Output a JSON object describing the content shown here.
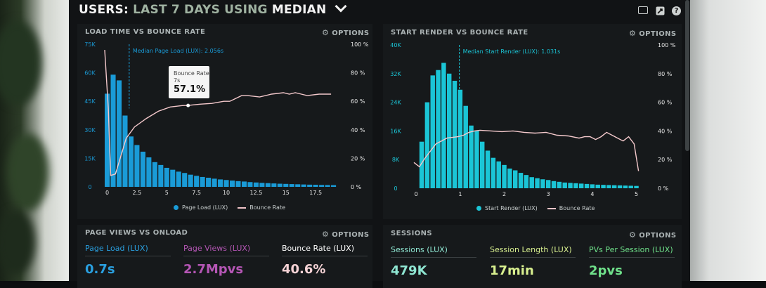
{
  "header": {
    "title_prefix": "USERS:",
    "title_range": "LAST 7 DAYS",
    "title_using": "USING",
    "title_method": "MEDIAN"
  },
  "icons": [
    "monitor-icon",
    "share-icon",
    "help-icon"
  ],
  "help_glyph": "?",
  "options_label": "OPTIONS",
  "colors": {
    "load_bar": "#1a9bd7",
    "render_bar": "#1bc5d6",
    "bounce_line": "#f4c9cc",
    "page_load_text": "#2aa0e0",
    "page_views_text": "#b556b5",
    "bounce_text": "#f6d3d6",
    "sessions_text": "#8fe6d2",
    "session_length_text": "#d8ef8f",
    "pvs_text": "#6fe08a"
  },
  "load_chart": {
    "title": "LOAD TIME VS BOUNCE RATE",
    "median_label": "Median Page Load (LUX): 2.056s",
    "tooltip": {
      "label": "Bounce Rate",
      "x": "7s",
      "value": "57.1%"
    },
    "legend": [
      "Page Load (LUX)",
      "Bounce Rate"
    ],
    "chart_data": {
      "type": "bar",
      "x_ticks": [
        "0",
        "2.5",
        "5",
        "7.5",
        "10",
        "12.5",
        "15",
        "17.5"
      ],
      "y_ticks_left": [
        "75K",
        "60K",
        "45K",
        "30K",
        "15K",
        "0"
      ],
      "y_ticks_right": [
        "100 %",
        "80 %",
        "60 %",
        "40 %",
        "20 %",
        "0 %"
      ],
      "ylim": [
        0,
        75000
      ],
      "xlim": [
        0,
        20
      ],
      "median_x": 2.056,
      "bar_width": 0.5,
      "bars": [
        {
          "x": 0,
          "y": 49000
        },
        {
          "x": 0.5,
          "y": 59000
        },
        {
          "x": 1,
          "y": 56000
        },
        {
          "x": 1.5,
          "y": 37500
        },
        {
          "x": 2,
          "y": 26500
        },
        {
          "x": 2.5,
          "y": 22000
        },
        {
          "x": 3,
          "y": 18500
        },
        {
          "x": 3.5,
          "y": 15500
        },
        {
          "x": 4,
          "y": 13000
        },
        {
          "x": 4.5,
          "y": 11500
        },
        {
          "x": 5,
          "y": 10000
        },
        {
          "x": 5.5,
          "y": 9000
        },
        {
          "x": 6,
          "y": 8000
        },
        {
          "x": 6.5,
          "y": 7300
        },
        {
          "x": 7,
          "y": 6400
        },
        {
          "x": 7.5,
          "y": 5800
        },
        {
          "x": 8,
          "y": 5200
        },
        {
          "x": 8.5,
          "y": 4800
        },
        {
          "x": 9,
          "y": 4300
        },
        {
          "x": 9.5,
          "y": 3900
        },
        {
          "x": 10,
          "y": 3600
        },
        {
          "x": 10.5,
          "y": 3300
        },
        {
          "x": 11,
          "y": 3000
        },
        {
          "x": 11.5,
          "y": 2800
        },
        {
          "x": 12,
          "y": 2500
        },
        {
          "x": 12.5,
          "y": 2300
        },
        {
          "x": 13,
          "y": 2100
        },
        {
          "x": 13.5,
          "y": 1950
        },
        {
          "x": 14,
          "y": 1800
        },
        {
          "x": 14.5,
          "y": 1650
        },
        {
          "x": 15,
          "y": 1550
        },
        {
          "x": 15.5,
          "y": 1450
        },
        {
          "x": 16,
          "y": 1350
        },
        {
          "x": 16.5,
          "y": 1250
        },
        {
          "x": 17,
          "y": 1150
        },
        {
          "x": 17.5,
          "y": 1100
        },
        {
          "x": 18,
          "y": 1000
        },
        {
          "x": 18.5,
          "y": 950
        },
        {
          "x": 19,
          "y": 900
        }
      ],
      "bounce_line": [
        [
          0,
          96
        ],
        [
          0.3,
          55
        ],
        [
          0.5,
          8
        ],
        [
          0.9,
          9
        ],
        [
          1.3,
          20
        ],
        [
          1.8,
          34
        ],
        [
          2.5,
          42
        ],
        [
          3.5,
          48
        ],
        [
          4.5,
          53
        ],
        [
          5.5,
          56
        ],
        [
          6.5,
          57
        ],
        [
          7,
          57.1
        ],
        [
          8,
          58
        ],
        [
          9,
          58.5
        ],
        [
          10,
          60
        ],
        [
          10.5,
          60
        ],
        [
          11,
          62
        ],
        [
          11.5,
          64
        ],
        [
          12,
          64
        ],
        [
          13,
          63
        ],
        [
          14,
          65
        ],
        [
          15,
          66
        ],
        [
          15.5,
          65
        ],
        [
          16,
          66
        ],
        [
          16.5,
          65
        ],
        [
          17,
          64
        ],
        [
          18,
          65
        ],
        [
          19,
          65
        ]
      ]
    }
  },
  "render_chart": {
    "title": "START RENDER VS BOUNCE RATE",
    "median_label": "Median Start Render (LUX): 1.031s",
    "legend": [
      "Start Render (LUX)",
      "Bounce Rate"
    ],
    "chart_data": {
      "type": "bar",
      "x_ticks": [
        "0",
        "1",
        "2",
        "3",
        "4",
        "5"
      ],
      "y_ticks_left": [
        "40K",
        "32K",
        "24K",
        "16K",
        "8K",
        "0"
      ],
      "y_ticks_right": [
        "100 %",
        "80 %",
        "60 %",
        "40 %",
        "20 %",
        "0 %"
      ],
      "ylim": [
        0,
        40000
      ],
      "xlim": [
        0,
        5.25
      ],
      "median_x": 1.031,
      "bar_width": 0.125,
      "bars": [
        {
          "x": 0.125,
          "y": 13000
        },
        {
          "x": 0.25,
          "y": 24000
        },
        {
          "x": 0.375,
          "y": 31500
        },
        {
          "x": 0.5,
          "y": 33000
        },
        {
          "x": 0.625,
          "y": 35000
        },
        {
          "x": 0.75,
          "y": 32000
        },
        {
          "x": 0.875,
          "y": 30000
        },
        {
          "x": 1,
          "y": 27500
        },
        {
          "x": 1.125,
          "y": 23000
        },
        {
          "x": 1.25,
          "y": 17500
        },
        {
          "x": 1.375,
          "y": 16000
        },
        {
          "x": 1.5,
          "y": 13000
        },
        {
          "x": 1.625,
          "y": 10500
        },
        {
          "x": 1.75,
          "y": 8500
        },
        {
          "x": 1.875,
          "y": 7500
        },
        {
          "x": 2,
          "y": 6500
        },
        {
          "x": 2.125,
          "y": 5500
        },
        {
          "x": 2.25,
          "y": 5000
        },
        {
          "x": 2.375,
          "y": 4300
        },
        {
          "x": 2.5,
          "y": 3700
        },
        {
          "x": 2.625,
          "y": 3100
        },
        {
          "x": 2.75,
          "y": 2800
        },
        {
          "x": 2.875,
          "y": 2500
        },
        {
          "x": 3,
          "y": 2300
        },
        {
          "x": 3.125,
          "y": 2000
        },
        {
          "x": 3.25,
          "y": 1800
        },
        {
          "x": 3.375,
          "y": 1600
        },
        {
          "x": 3.5,
          "y": 1500
        },
        {
          "x": 3.625,
          "y": 1400
        },
        {
          "x": 3.75,
          "y": 1300
        },
        {
          "x": 3.875,
          "y": 1200
        },
        {
          "x": 4,
          "y": 1100
        },
        {
          "x": 4.125,
          "y": 1000
        },
        {
          "x": 4.25,
          "y": 950
        },
        {
          "x": 4.375,
          "y": 900
        },
        {
          "x": 4.5,
          "y": 850
        },
        {
          "x": 4.625,
          "y": 800
        },
        {
          "x": 4.75,
          "y": 750
        },
        {
          "x": 4.875,
          "y": 700
        },
        {
          "x": 5,
          "y": 650
        }
      ],
      "bounce_line": [
        [
          0,
          18
        ],
        [
          0.125,
          15
        ],
        [
          0.25,
          21
        ],
        [
          0.375,
          26
        ],
        [
          0.5,
          31
        ],
        [
          0.625,
          33
        ],
        [
          0.75,
          35
        ],
        [
          0.875,
          35.5
        ],
        [
          1,
          36
        ],
        [
          1.125,
          37
        ],
        [
          1.25,
          39
        ],
        [
          1.375,
          40
        ],
        [
          1.5,
          40.5
        ],
        [
          1.75,
          40
        ],
        [
          2,
          39.5
        ],
        [
          2.25,
          40
        ],
        [
          2.5,
          39
        ],
        [
          2.75,
          38.5
        ],
        [
          3,
          39
        ],
        [
          3.25,
          37
        ],
        [
          3.5,
          36.5
        ],
        [
          3.75,
          35
        ],
        [
          3.875,
          36
        ],
        [
          4,
          36
        ],
        [
          4.125,
          34
        ],
        [
          4.25,
          36
        ],
        [
          4.375,
          39
        ],
        [
          4.5,
          37
        ],
        [
          4.625,
          35
        ],
        [
          4.75,
          33
        ],
        [
          4.875,
          36
        ],
        [
          5,
          31
        ],
        [
          5.1,
          12
        ]
      ]
    }
  },
  "page_views_panel": {
    "title": "PAGE VIEWS VS ONLOAD",
    "metrics": [
      {
        "label": "Page Load (LUX)",
        "value": "0.7s"
      },
      {
        "label": "Page Views (LUX)",
        "value": "2.7Mpvs"
      },
      {
        "label": "Bounce Rate (LUX)",
        "value": "40.6%"
      }
    ]
  },
  "sessions_panel": {
    "title": "SESSIONS",
    "metrics": [
      {
        "label": "Sessions (LUX)",
        "value": "479K"
      },
      {
        "label": "Session Length (LUX)",
        "value": "17min"
      },
      {
        "label": "PVs Per Session (LUX)",
        "value": "2pvs"
      }
    ]
  }
}
